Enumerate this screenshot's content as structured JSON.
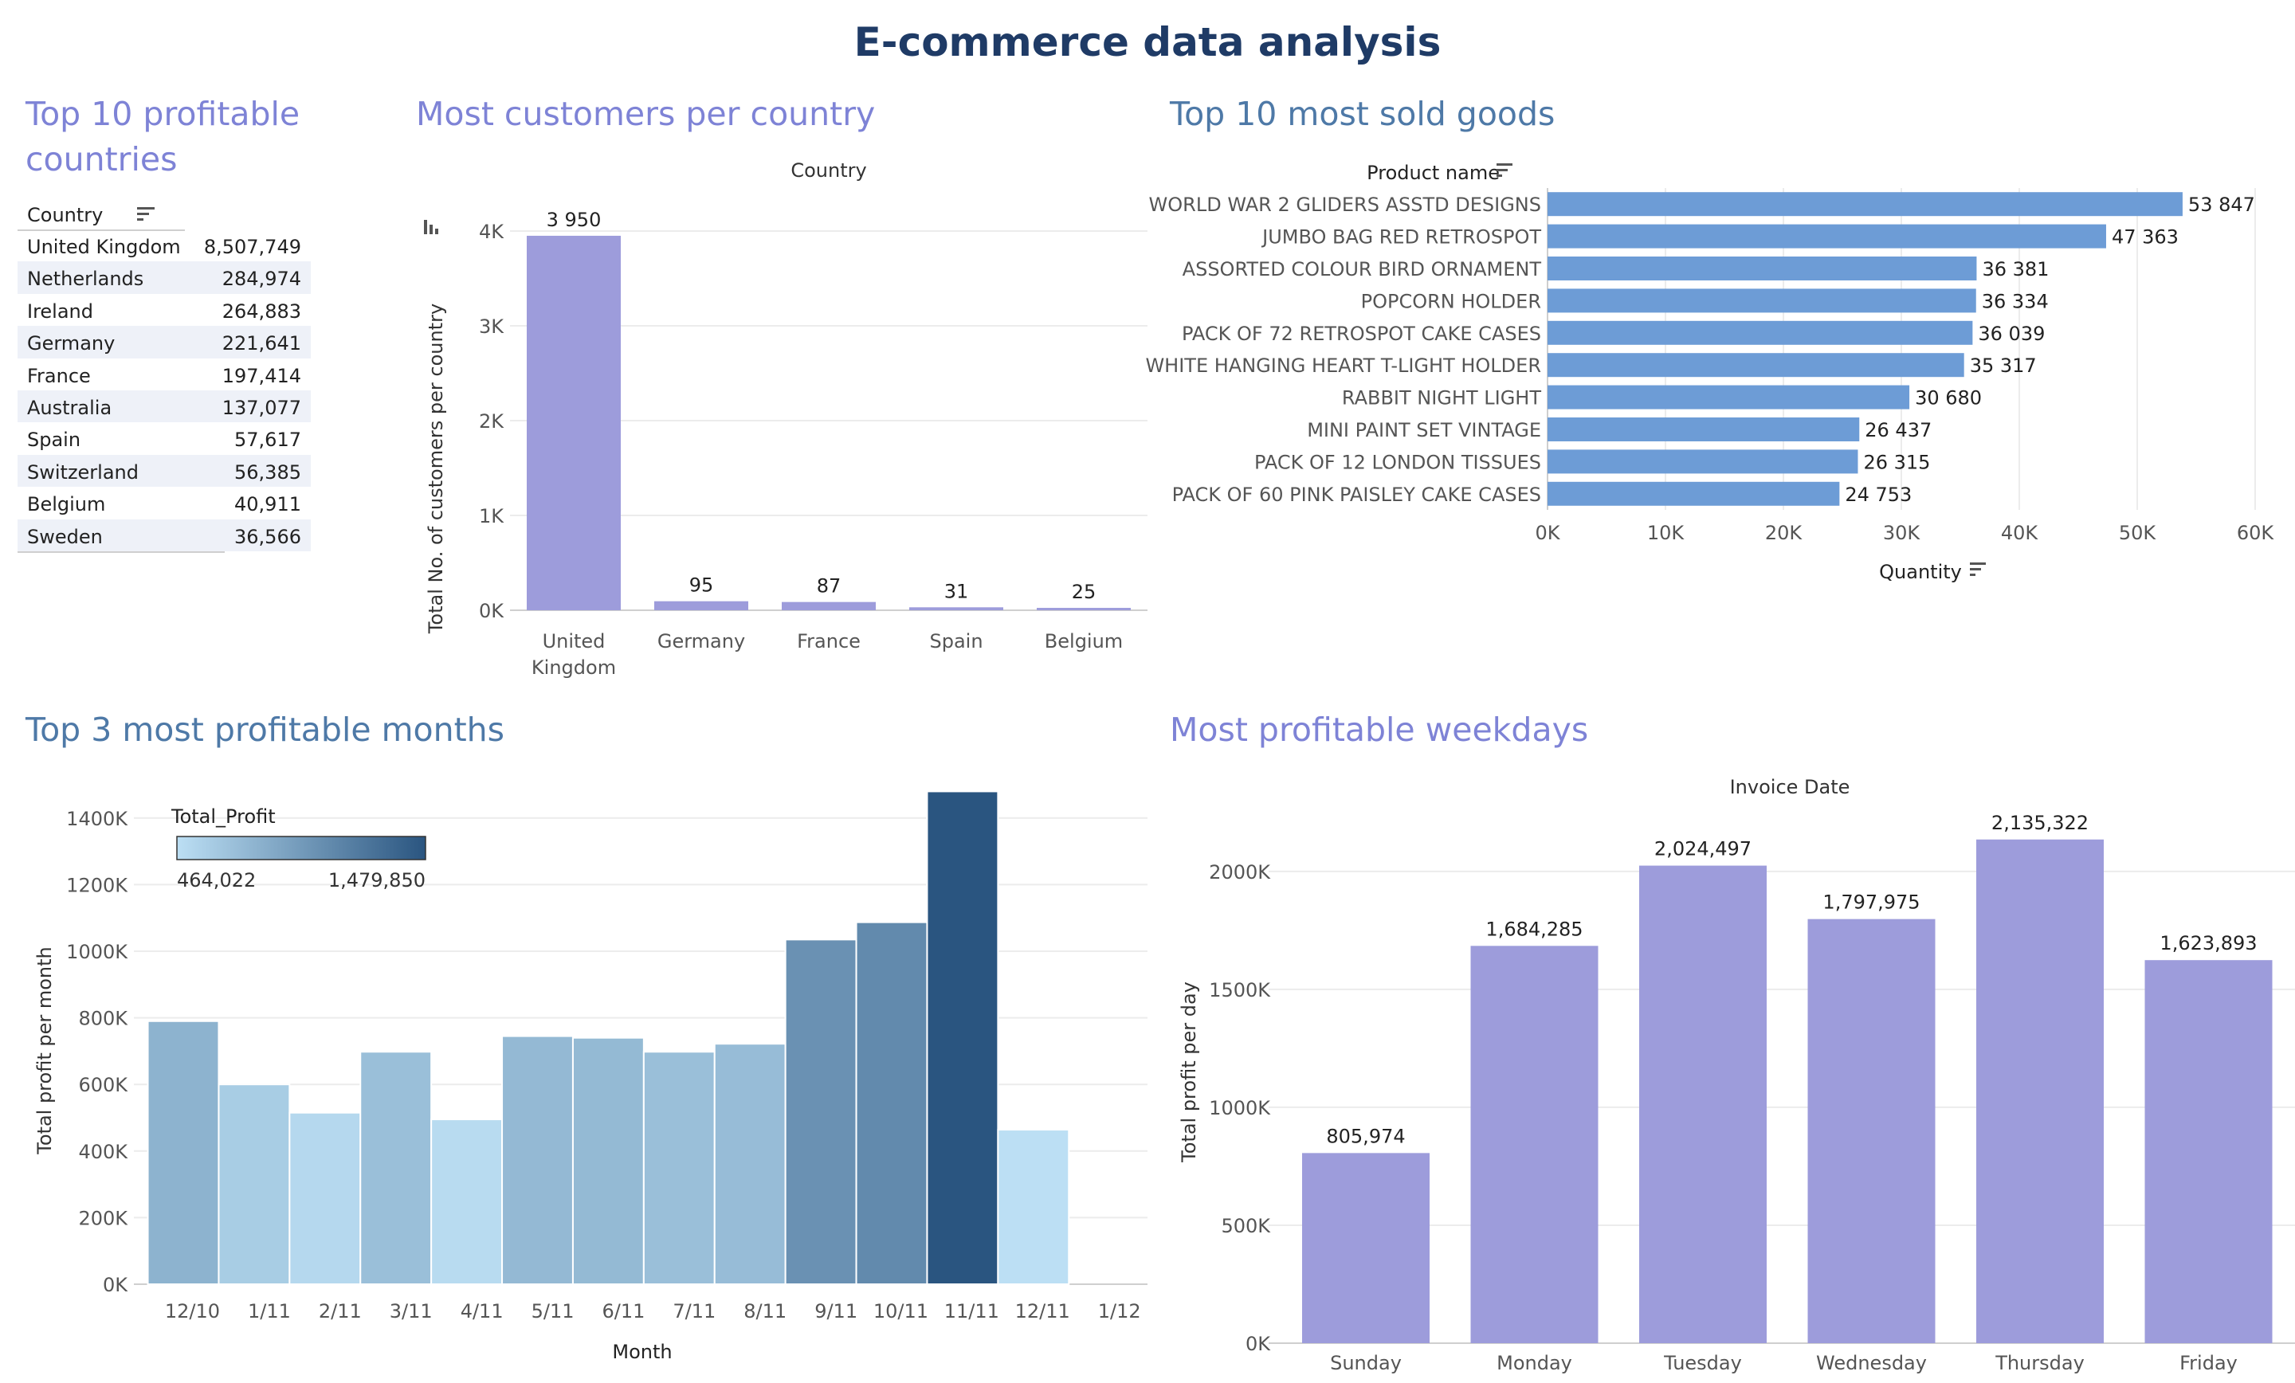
{
  "title": "E-commerce data analysis",
  "sections": {
    "countries_title": "Top 10 profitable countries",
    "customers_title": "Most customers per country",
    "goods_title": "Top 10 most sold goods",
    "months_title": "Top 3 most profitable months",
    "weekdays_title": "Most profitable weekdays"
  },
  "sort_icon": "sort-descending-icon",
  "colors": {
    "purple_bar": "#9d9cdb",
    "blue_bar": "#6d9cd6",
    "title_purple": "#7e83d6",
    "title_blue": "#4e79a7",
    "gradient_low": "#bcdff4",
    "gradient_high": "#2a5580"
  },
  "chart_data": [
    {
      "type": "table",
      "header": "Country",
      "rows": [
        {
          "country": "United Kingdom",
          "value": "8,507,749"
        },
        {
          "country": "Netherlands",
          "value": "284,974"
        },
        {
          "country": "Ireland",
          "value": "264,883"
        },
        {
          "country": "Germany",
          "value": "221,641"
        },
        {
          "country": "France",
          "value": "197,414"
        },
        {
          "country": "Australia",
          "value": "137,077"
        },
        {
          "country": "Spain",
          "value": "57,617"
        },
        {
          "country": "Switzerland",
          "value": "56,385"
        },
        {
          "country": "Belgium",
          "value": "40,911"
        },
        {
          "country": "Sweden",
          "value": "36,566"
        }
      ]
    },
    {
      "type": "bar",
      "header": "Country",
      "ylabel": "Total No. of customers per country",
      "categories": [
        "United Kingdom",
        "Germany",
        "France",
        "Spain",
        "Belgium"
      ],
      "values": [
        3950,
        95,
        87,
        31,
        25
      ],
      "value_labels": [
        "3 950",
        "95",
        "87",
        "31",
        "25"
      ],
      "ylim": [
        0,
        4000
      ],
      "yticks": [
        0,
        1000,
        2000,
        3000,
        4000
      ],
      "ytick_labels": [
        "0K",
        "1K",
        "2K",
        "3K",
        "4K"
      ]
    },
    {
      "type": "bar",
      "orientation": "horizontal",
      "header": "Product name",
      "xlabel": "Quantity",
      "categories": [
        "WORLD WAR 2 GLIDERS ASSTD DESIGNS",
        "JUMBO BAG RED RETROSPOT",
        "ASSORTED COLOUR BIRD ORNAMENT",
        "POPCORN HOLDER",
        "PACK OF 72 RETROSPOT CAKE CASES",
        "WHITE HANGING HEART T-LIGHT HOLDER",
        "RABBIT NIGHT LIGHT",
        "MINI PAINT SET VINTAGE",
        "PACK OF 12 LONDON TISSUES",
        "PACK OF 60 PINK PAISLEY CAKE CASES"
      ],
      "values": [
        53847,
        47363,
        36381,
        36334,
        36039,
        35317,
        30680,
        26437,
        26315,
        24753
      ],
      "value_labels": [
        "53 847",
        "47 363",
        "36 381",
        "36 334",
        "36 039",
        "35 317",
        "30 680",
        "26 437",
        "26 315",
        "24 753"
      ],
      "xlim": [
        0,
        60000
      ],
      "xticks": [
        0,
        10000,
        20000,
        30000,
        40000,
        50000,
        60000
      ],
      "xtick_labels": [
        "0K",
        "10K",
        "20K",
        "30K",
        "40K",
        "50K",
        "60K"
      ]
    },
    {
      "type": "bar",
      "xlabel": "Month",
      "ylabel": "Total profit per month",
      "legend_title": "Total_Profit",
      "legend_min": "464,022",
      "legend_max": "1,479,850",
      "color_min": 464022,
      "color_max": 1479850,
      "categories": [
        "12/10",
        "1/11",
        "2/11",
        "3/11",
        "4/11",
        "5/11",
        "6/11",
        "7/11",
        "8/11",
        "9/11",
        "10/11",
        "11/11",
        "12/11"
      ],
      "extra_tick": "1/12",
      "values": [
        790000,
        600000,
        515000,
        698000,
        495000,
        745000,
        740000,
        698000,
        722000,
        1035000,
        1087000,
        1479850,
        464022
      ],
      "ylim": [
        0,
        1500000
      ],
      "yticks": [
        0,
        200000,
        400000,
        600000,
        800000,
        1000000,
        1200000,
        1400000
      ],
      "ytick_labels": [
        "0K",
        "200K",
        "400K",
        "600K",
        "800K",
        "1000K",
        "1200K",
        "1400K"
      ]
    },
    {
      "type": "bar",
      "header": "Invoice Date",
      "ylabel": "Total profit per day",
      "categories": [
        "Sunday",
        "Monday",
        "Tuesday",
        "Wednesday",
        "Thursday",
        "Friday"
      ],
      "values": [
        805974,
        1684285,
        2024497,
        1797975,
        2135322,
        1623893
      ],
      "value_labels": [
        "805,974",
        "1,684,285",
        "2,024,497",
        "1,797,975",
        "2,135,322",
        "1,623,893"
      ],
      "ylim": [
        0,
        2300000
      ],
      "yticks": [
        0,
        500000,
        1000000,
        1500000,
        2000000
      ],
      "ytick_labels": [
        "0K",
        "500K",
        "1000K",
        "1500K",
        "2000K"
      ]
    }
  ]
}
